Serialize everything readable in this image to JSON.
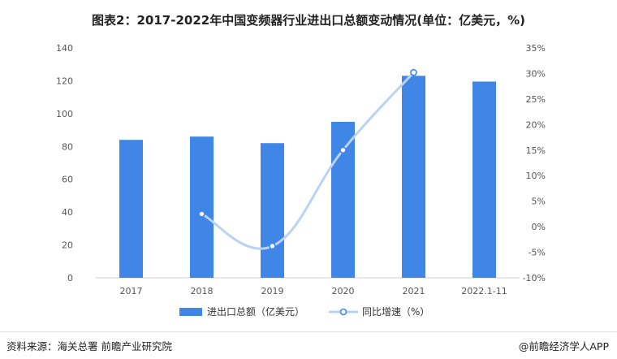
{
  "title": "图表2：2017-2022年中国变频器行业进出口总额变动情况(单位：亿美元，%)",
  "source": "资料来源：海关总署 前瞻产业研究院",
  "copyright": "@前瞻经济学人APP",
  "colors": {
    "bar": "#3f86e6",
    "line": "#b9d3f5"
  },
  "chart_data": {
    "type": "bar",
    "categories": [
      "2017",
      "2018",
      "2019",
      "2020",
      "2021",
      "2022.1-11"
    ],
    "series": [
      {
        "name": "进出口总额（亿美元）",
        "type": "bar",
        "axis": "left",
        "values": [
          84,
          86,
          82,
          95,
          123,
          119.5
        ]
      },
      {
        "name": "同比增速（%）",
        "type": "line",
        "axis": "right",
        "values": [
          null,
          2.5,
          -3.8,
          15,
          30.2,
          null
        ]
      }
    ],
    "left_axis": {
      "min": 0,
      "max": 140,
      "ticks": [
        "0",
        "20",
        "40",
        "60",
        "80",
        "100",
        "120",
        "140"
      ]
    },
    "right_axis": {
      "min": -10,
      "max": 35,
      "ticks": [
        "-10%",
        "-5%",
        "0%",
        "5%",
        "10%",
        "15%",
        "20%",
        "25%",
        "30%",
        "35%"
      ]
    },
    "legend_position": "bottom",
    "grid": false
  }
}
